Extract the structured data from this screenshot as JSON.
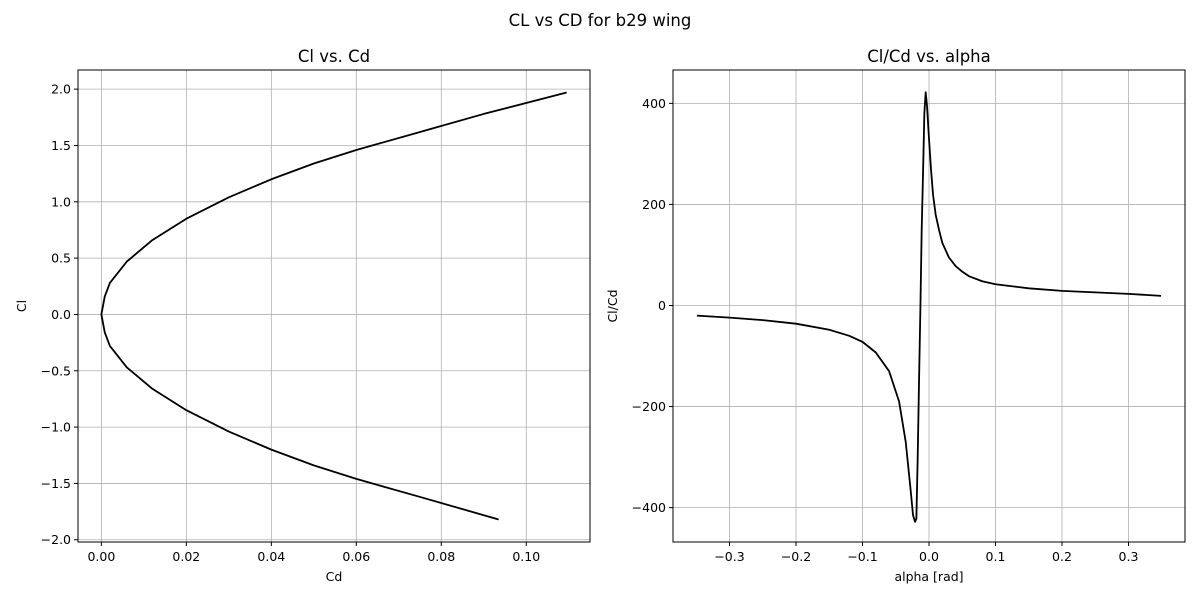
{
  "figure": {
    "title": "CL vs CD for b29 wing"
  },
  "chart_data": [
    {
      "type": "line",
      "title": "Cl vs. Cd",
      "xlabel": "Cd",
      "ylabel": "Cl",
      "xlim": [
        -0.0055,
        0.115
      ],
      "ylim": [
        -2.02,
        2.17
      ],
      "grid": true,
      "xticks": [
        0.0,
        0.02,
        0.04,
        0.06,
        0.08,
        0.1
      ],
      "xtick_labels": [
        "0.00",
        "0.02",
        "0.04",
        "0.06",
        "0.08",
        "0.10"
      ],
      "yticks": [
        -2.0,
        -1.5,
        -1.0,
        -0.5,
        0.0,
        0.5,
        1.0,
        1.5,
        2.0
      ],
      "ytick_labels": [
        "−2.0",
        "−1.5",
        "−1.0",
        "−0.5",
        "0.0",
        "0.5",
        "1.0",
        "1.5",
        "2.0"
      ],
      "series": [
        {
          "color": "#000000",
          "x": [
            0.0935,
            0.075,
            0.06,
            0.05,
            0.04,
            0.03,
            0.02,
            0.012,
            0.006,
            0.002,
            0.0008,
            0.0,
            0.0008,
            0.002,
            0.006,
            0.012,
            0.02,
            0.03,
            0.04,
            0.05,
            0.06,
            0.075,
            0.09,
            0.1095
          ],
          "y": [
            -1.82,
            -1.62,
            -1.46,
            -1.34,
            -1.2,
            -1.04,
            -0.85,
            -0.66,
            -0.47,
            -0.28,
            -0.16,
            0.0,
            0.16,
            0.28,
            0.47,
            0.66,
            0.85,
            1.04,
            1.2,
            1.34,
            1.46,
            1.62,
            1.78,
            1.97
          ]
        }
      ]
    },
    {
      "type": "line",
      "title": "Cl/Cd vs. alpha",
      "xlabel": "alpha [rad]",
      "ylabel": "Cl/Cd",
      "xlim": [
        -0.385,
        0.385
      ],
      "ylim": [
        -468,
        466
      ],
      "grid": true,
      "xticks": [
        -0.3,
        -0.2,
        -0.1,
        0.0,
        0.1,
        0.2,
        0.3
      ],
      "xtick_labels": [
        "−0.3",
        "−0.2",
        "−0.1",
        "0.0",
        "0.1",
        "0.2",
        "0.3"
      ],
      "yticks": [
        -400,
        -200,
        0,
        200,
        400
      ],
      "ytick_labels": [
        "−400",
        "−200",
        "0",
        "200",
        "400"
      ],
      "series": [
        {
          "color": "#000000",
          "x": [
            -0.349,
            -0.3,
            -0.25,
            -0.2,
            -0.15,
            -0.12,
            -0.1,
            -0.08,
            -0.06,
            -0.045,
            -0.035,
            -0.028,
            -0.024,
            -0.021,
            -0.019,
            -0.017,
            -0.015,
            -0.013,
            -0.011,
            -0.009,
            -0.007,
            -0.005,
            -0.003,
            0.0,
            0.003,
            0.006,
            0.01,
            0.015,
            0.02,
            0.03,
            0.04,
            0.05,
            0.06,
            0.08,
            0.1,
            0.15,
            0.2,
            0.25,
            0.3,
            0.349
          ],
          "y": [
            -20,
            -24,
            -29,
            -36,
            -48,
            -60,
            -72,
            -93,
            -130,
            -190,
            -270,
            -360,
            -415,
            -428,
            -422,
            -300,
            -150,
            -10,
            150,
            260,
            380,
            422,
            395,
            330,
            270,
            220,
            180,
            150,
            124,
            95,
            78,
            67,
            58,
            48,
            42,
            34,
            29,
            26,
            23,
            19
          ]
        }
      ]
    }
  ]
}
